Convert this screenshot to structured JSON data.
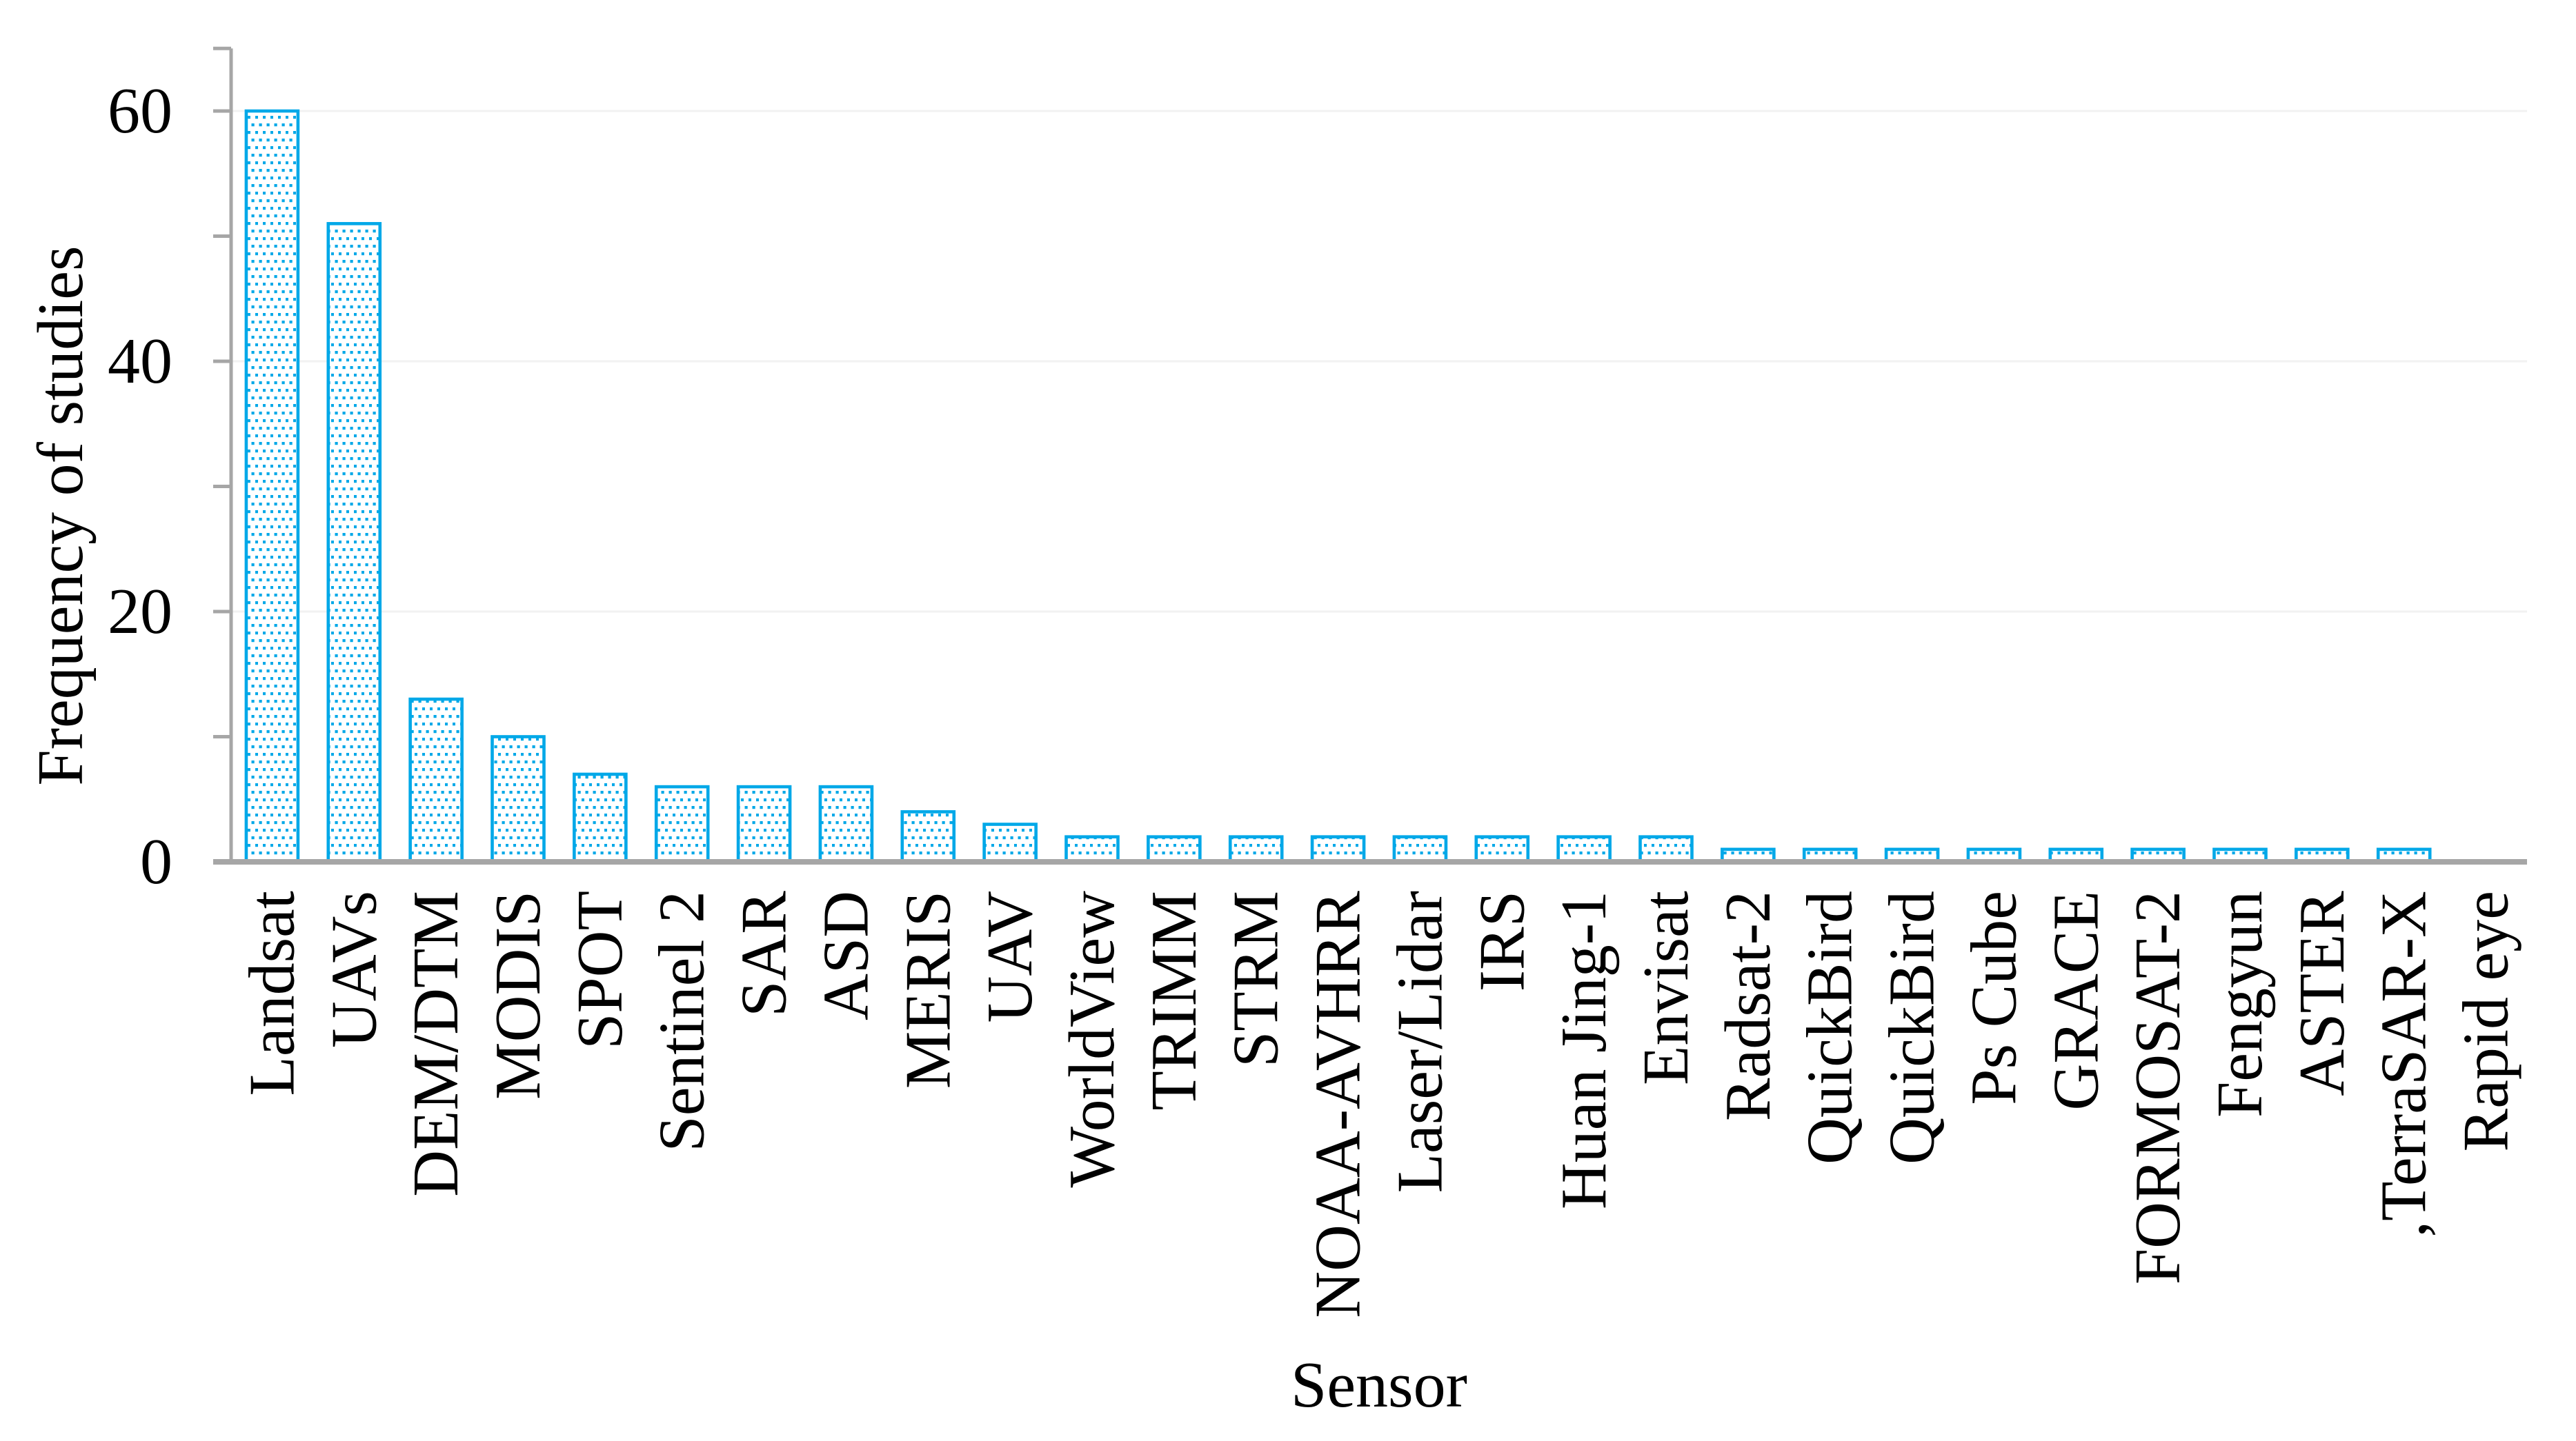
{
  "figure": {
    "background_color": "#ffffff",
    "text_color": "#000000"
  },
  "chart_data": {
    "type": "bar",
    "title": "",
    "xlabel": "Sensor",
    "ylabel": "Frequency of studies",
    "categories": [
      "Landsat",
      "UAVs",
      "DEM/DTM",
      "MODIS",
      "SPOT",
      "Sentinel 2",
      "SAR",
      "ASD",
      "MERIS",
      "UAV",
      "WorldView",
      "TRIMM",
      "STRM",
      "NOAA-AVHRR",
      "Laser/Lidar",
      "IRS",
      "Huan Jing-1",
      "Envisat",
      "Radsat-2",
      "QuickBird",
      "QuickBird",
      "Ps Cube",
      "GRACE",
      "FORMOSAT-2",
      "Fengyun",
      "ASTER",
      ",TerraSAR-X",
      "Rapid eye"
    ],
    "values": [
      60,
      51,
      13,
      10,
      7,
      6,
      6,
      6,
      4,
      3,
      2,
      2,
      2,
      2,
      2,
      2,
      2,
      2,
      1,
      1,
      1,
      1,
      1,
      1,
      1,
      1,
      1,
      0
    ],
    "ylim": [
      0,
      65
    ],
    "yticks_labeled": [
      0,
      20,
      40,
      60
    ],
    "yticks_all": [
      0,
      10,
      20,
      30,
      40,
      50,
      60,
      65
    ],
    "grid": "horizontal gridlines at labeled ticks only",
    "legend": "none",
    "bar_stroke_color": "#00a8e8",
    "bar_dot_color": "#00a8e8",
    "bar_fill_color": "#ffffff",
    "axis_color": "#a6a6a6",
    "gridline_color": "#f2f2f2"
  }
}
